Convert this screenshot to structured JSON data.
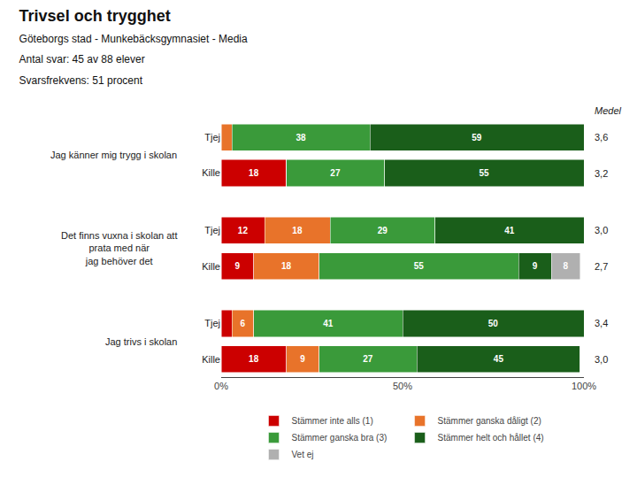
{
  "chart_data": {
    "type": "bar",
    "orientation": "horizontal",
    "stacked": true,
    "title": "Trivsel och trygghet",
    "subtitle": [
      "Göteborgs stad - Munkebäcksgymnasiet - Media",
      "Antal svar: 45 av 88 elever",
      "Svarsfrekvens: 51 procent"
    ],
    "categories": [
      "Tjej",
      "Kille",
      "Tjej",
      "Kille",
      "Tjej",
      "Kille"
    ],
    "group_labels": [
      "Jag känner mig trygg i skolan",
      "Det finns vuxna i skolan att\nprata med när\njag behöver det",
      "Jag trivs i skolan"
    ],
    "series": [
      {
        "name": "Stämmer inte alls (1)",
        "color": "#cc0000",
        "values": [
          0,
          18,
          12,
          9,
          3,
          18
        ],
        "value_labels": [
          null,
          "18",
          "12",
          "9",
          null,
          "18"
        ]
      },
      {
        "name": "Stämmer ganska dåligt (2)",
        "color": "#e8732a",
        "values": [
          3,
          0,
          18,
          18,
          6,
          9
        ],
        "value_labels": [
          null,
          null,
          "18",
          "18",
          "6",
          "9"
        ]
      },
      {
        "name": "Stämmer ganska bra (3)",
        "color": "#3a9a3a",
        "values": [
          38,
          27,
          29,
          55,
          41,
          27
        ],
        "value_labels": [
          "38",
          "27",
          "29",
          "55",
          "41",
          "27"
        ]
      },
      {
        "name": "Stämmer helt och hållet (4)",
        "color": "#1a5e1a",
        "values": [
          59,
          55,
          41,
          9,
          50,
          45
        ],
        "value_labels": [
          "59",
          "55",
          "41",
          "9",
          "50",
          "45"
        ]
      },
      {
        "name": "Vet ej",
        "color": "#b0b0b0",
        "values": [
          0,
          0,
          0,
          8,
          0,
          0
        ],
        "value_labels": [
          null,
          null,
          null,
          "8",
          null,
          null
        ]
      }
    ],
    "medel": {
      "title": "Medel",
      "values": [
        3.6,
        3.2,
        3.0,
        2.7,
        3.4,
        3.0
      ],
      "value_labels": [
        "3,6",
        "3,2",
        "3,0",
        "2,7",
        "3,4",
        "3,0"
      ]
    },
    "xlim": [
      0,
      100
    ],
    "xticks": [
      {
        "value": 0,
        "label": "0%"
      },
      {
        "value": 50,
        "label": "50%"
      },
      {
        "value": 100,
        "label": "100%"
      }
    ],
    "data_labels": true,
    "grid": false,
    "legend": "bottom"
  }
}
